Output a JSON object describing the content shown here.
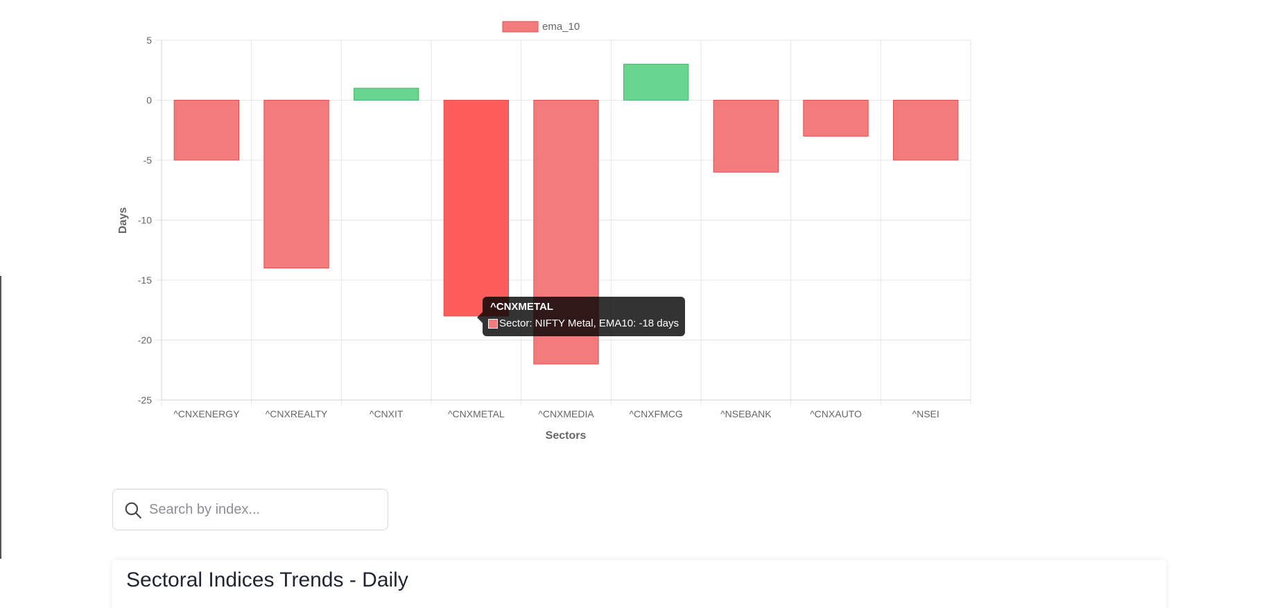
{
  "colors": {
    "negative_fill": "#f47b7b",
    "negative_stroke": "#e05050",
    "negative_hover_fill": "#ff5c5c",
    "positive_fill": "#68d68e",
    "positive_stroke": "#48b870",
    "grid": "#e6e6e6",
    "axis_text": "#666666"
  },
  "chart_data": {
    "type": "bar",
    "legend": {
      "label": "ema_10",
      "position": "top"
    },
    "xlabel": "Sectors",
    "ylabel": "Days",
    "ylim": [
      -25,
      5
    ],
    "yticks": [
      5,
      0,
      -5,
      -10,
      -15,
      -20,
      -25
    ],
    "grid": true,
    "categories": [
      "^CNXENERGY",
      "^CNXREALTY",
      "^CNXIT",
      "^CNXMETAL",
      "^CNXMEDIA",
      "^CNXFMCG",
      "^NSEBANK",
      "^CNXAUTO",
      "^NSEI"
    ],
    "series": [
      {
        "name": "ema_10",
        "values": [
          -5,
          -14,
          1,
          -18,
          -22,
          3,
          -6,
          -3,
          -5
        ]
      }
    ],
    "highlighted_category": "^CNXMETAL",
    "tooltip": {
      "title": "^CNXMETAL",
      "body": "Sector: NIFTY Metal, EMA10: -18 days"
    }
  },
  "search": {
    "placeholder": "Search by index..."
  },
  "card": {
    "title": "Sectoral Indices Trends - Daily"
  }
}
